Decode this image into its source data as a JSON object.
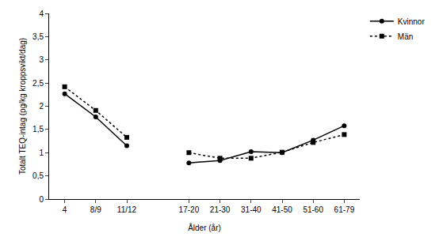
{
  "chart_data": {
    "type": "line",
    "x_label": "Ålder (år)",
    "y_label": "Totalt TEQ-intag (pg/kg kroppsvikt/dag)",
    "categories": [
      "4",
      "8/9",
      "11/12",
      null,
      "17-20",
      "21-30",
      "31-40",
      "41-50",
      "51-60",
      "61-79"
    ],
    "series": [
      {
        "name": "Kvinnor",
        "color": "#000000",
        "marker": "circle",
        "line_style": "solid",
        "values": [
          2.27,
          1.77,
          1.15,
          null,
          0.78,
          0.83,
          1.02,
          1.0,
          1.27,
          1.58
        ]
      },
      {
        "name": "Män",
        "color": "#000000",
        "marker": "square",
        "line_style": "dotted",
        "values": [
          2.42,
          1.91,
          1.33,
          null,
          1.0,
          0.88,
          0.88,
          1.01,
          1.22,
          1.39
        ]
      }
    ],
    "ylim": [
      0,
      4
    ],
    "yticks": [
      0,
      {
        "value": 0.5,
        "label": "0,5"
      },
      1,
      {
        "value": 1.5,
        "label": "1,5"
      },
      2,
      {
        "value": 2.5,
        "label": "2,5"
      },
      3,
      {
        "value": 3.5,
        "label": "3,5"
      },
      4
    ],
    "grid": false,
    "legend": "right"
  }
}
